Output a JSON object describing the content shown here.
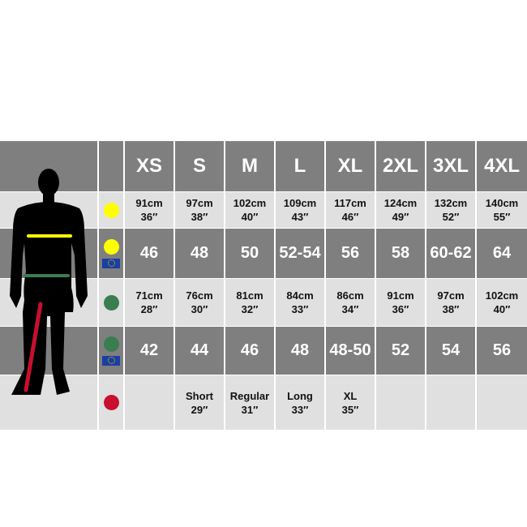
{
  "sizes": [
    "XS",
    "S",
    "M",
    "L",
    "XL",
    "2XL",
    "3XL",
    "4XL"
  ],
  "colors": {
    "chest": "#ffff00",
    "waist": "#3a7d50",
    "leg": "#c8102e",
    "dark_row": "#7f7f7f",
    "light_row": "#e0e0e0"
  },
  "rows": [
    {
      "marker": "chest-dot",
      "type": "measure",
      "cm": [
        "91cm",
        "97cm",
        "102cm",
        "109cm",
        "117cm",
        "124cm",
        "132cm",
        "140cm"
      ],
      "inch": [
        "36″",
        "38″",
        "40″",
        "43″",
        "46″",
        "49″",
        "52″",
        "55″"
      ]
    },
    {
      "marker": "chest-dot-eu-flag",
      "type": "eu",
      "values": [
        "46",
        "48",
        "50",
        "52-54",
        "56",
        "58",
        "60-62",
        "64"
      ]
    },
    {
      "marker": "waist-dot",
      "type": "measure",
      "cm": [
        "71cm",
        "76cm",
        "81cm",
        "84cm",
        "86cm",
        "91cm",
        "97cm",
        "102cm"
      ],
      "inch": [
        "28″",
        "30″",
        "32″",
        "33″",
        "34″",
        "36″",
        "38″",
        "40″"
      ]
    },
    {
      "marker": "waist-dot-eu-flag",
      "type": "eu",
      "values": [
        "42",
        "44",
        "46",
        "48",
        "48-50",
        "52",
        "54",
        "56"
      ]
    },
    {
      "marker": "leg-dot",
      "type": "leg",
      "labels": [
        "",
        "Short",
        "Regular",
        "Long",
        "XL",
        "",
        "",
        ""
      ],
      "inch": [
        "",
        "29″",
        "31″",
        "33″",
        "35″",
        "",
        "",
        ""
      ]
    }
  ]
}
